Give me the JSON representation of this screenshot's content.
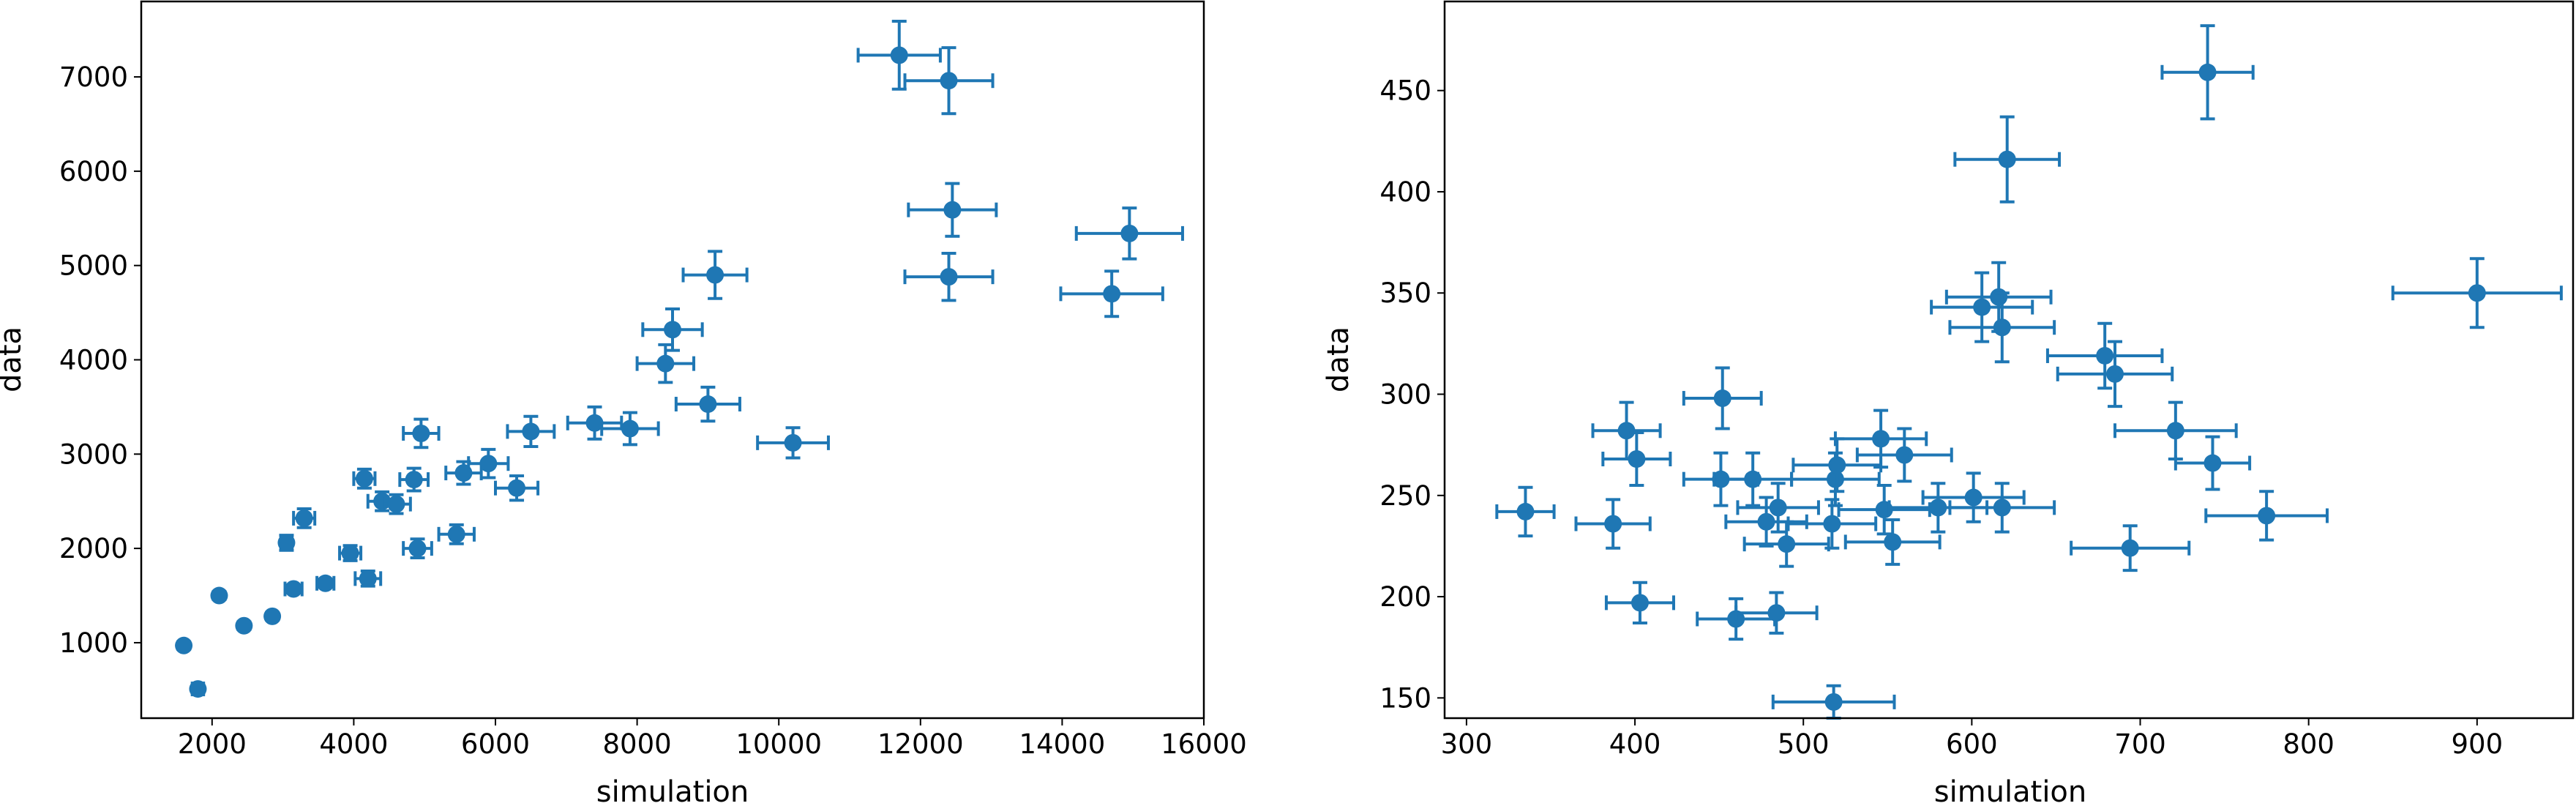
{
  "chart_data": [
    {
      "type": "scatter",
      "xlabel": "simulation",
      "ylabel": "data",
      "xlim": [
        1000,
        16000
      ],
      "ylim": [
        200,
        7800
      ],
      "xticks": [
        2000,
        4000,
        6000,
        8000,
        10000,
        12000,
        14000,
        16000
      ],
      "yticks": [
        1000,
        2000,
        3000,
        4000,
        5000,
        6000,
        7000
      ],
      "grid": false,
      "color": "#1f77b4",
      "points": [
        {
          "x": 1600,
          "y": 970,
          "xerr": 40,
          "yerr": 40
        },
        {
          "x": 1800,
          "y": 510,
          "xerr": 80,
          "yerr": 40
        },
        {
          "x": 2100,
          "y": 1500,
          "xerr": 40,
          "yerr": 40
        },
        {
          "x": 2450,
          "y": 1180,
          "xerr": 40,
          "yerr": 40
        },
        {
          "x": 2850,
          "y": 1280,
          "xerr": 40,
          "yerr": 40
        },
        {
          "x": 3050,
          "y": 2060,
          "xerr": 80,
          "yerr": 80
        },
        {
          "x": 3150,
          "y": 1570,
          "xerr": 120,
          "yerr": 40
        },
        {
          "x": 3300,
          "y": 2320,
          "xerr": 150,
          "yerr": 100
        },
        {
          "x": 3600,
          "y": 1630,
          "xerr": 120,
          "yerr": 40
        },
        {
          "x": 3950,
          "y": 1950,
          "xerr": 150,
          "yerr": 80
        },
        {
          "x": 4150,
          "y": 2740,
          "xerr": 150,
          "yerr": 100
        },
        {
          "x": 4200,
          "y": 1680,
          "xerr": 180,
          "yerr": 80
        },
        {
          "x": 4400,
          "y": 2500,
          "xerr": 200,
          "yerr": 100
        },
        {
          "x": 4600,
          "y": 2470,
          "xerr": 200,
          "yerr": 100
        },
        {
          "x": 4850,
          "y": 2730,
          "xerr": 200,
          "yerr": 120
        },
        {
          "x": 4900,
          "y": 2000,
          "xerr": 200,
          "yerr": 100
        },
        {
          "x": 4950,
          "y": 3220,
          "xerr": 250,
          "yerr": 150
        },
        {
          "x": 5450,
          "y": 2150,
          "xerr": 250,
          "yerr": 100
        },
        {
          "x": 5550,
          "y": 2800,
          "xerr": 250,
          "yerr": 120
        },
        {
          "x": 5900,
          "y": 2900,
          "xerr": 280,
          "yerr": 150
        },
        {
          "x": 6300,
          "y": 2640,
          "xerr": 300,
          "yerr": 130
        },
        {
          "x": 6500,
          "y": 3240,
          "xerr": 330,
          "yerr": 160
        },
        {
          "x": 7400,
          "y": 3330,
          "xerr": 380,
          "yerr": 170
        },
        {
          "x": 7900,
          "y": 3270,
          "xerr": 400,
          "yerr": 170
        },
        {
          "x": 8400,
          "y": 3960,
          "xerr": 400,
          "yerr": 200
        },
        {
          "x": 8500,
          "y": 4320,
          "xerr": 420,
          "yerr": 220
        },
        {
          "x": 9000,
          "y": 3530,
          "xerr": 450,
          "yerr": 180
        },
        {
          "x": 9100,
          "y": 4900,
          "xerr": 450,
          "yerr": 250
        },
        {
          "x": 10200,
          "y": 3120,
          "xerr": 500,
          "yerr": 160
        },
        {
          "x": 11700,
          "y": 7230,
          "xerr": 580,
          "yerr": 360
        },
        {
          "x": 12400,
          "y": 6960,
          "xerr": 620,
          "yerr": 350
        },
        {
          "x": 12400,
          "y": 4880,
          "xerr": 620,
          "yerr": 250
        },
        {
          "x": 12450,
          "y": 5590,
          "xerr": 620,
          "yerr": 280
        },
        {
          "x": 14700,
          "y": 4700,
          "xerr": 720,
          "yerr": 240
        },
        {
          "x": 14950,
          "y": 5340,
          "xerr": 750,
          "yerr": 270
        }
      ]
    },
    {
      "type": "scatter",
      "xlabel": "simulation",
      "ylabel": "data",
      "xlim": [
        287,
        957
      ],
      "ylim": [
        140,
        494
      ],
      "xticks": [
        300,
        400,
        500,
        600,
        700,
        800,
        900
      ],
      "yticks": [
        150,
        200,
        250,
        300,
        350,
        400,
        450
      ],
      "grid": false,
      "color": "#1f77b4",
      "points": [
        {
          "x": 335,
          "y": 242,
          "xerr": 17,
          "yerr": 12
        },
        {
          "x": 387,
          "y": 236,
          "xerr": 22,
          "yerr": 12
        },
        {
          "x": 395,
          "y": 282,
          "xerr": 20,
          "yerr": 14
        },
        {
          "x": 401,
          "y": 268,
          "xerr": 20,
          "yerr": 13
        },
        {
          "x": 403,
          "y": 197,
          "xerr": 20,
          "yerr": 10
        },
        {
          "x": 452,
          "y": 298,
          "xerr": 23,
          "yerr": 15
        },
        {
          "x": 451,
          "y": 258,
          "xerr": 22,
          "yerr": 13
        },
        {
          "x": 460,
          "y": 189,
          "xerr": 23,
          "yerr": 10
        },
        {
          "x": 470,
          "y": 258,
          "xerr": 23,
          "yerr": 13
        },
        {
          "x": 478,
          "y": 237,
          "xerr": 24,
          "yerr": 12
        },
        {
          "x": 485,
          "y": 244,
          "xerr": 24,
          "yerr": 12
        },
        {
          "x": 484,
          "y": 192,
          "xerr": 24,
          "yerr": 10
        },
        {
          "x": 490,
          "y": 226,
          "xerr": 25,
          "yerr": 11
        },
        {
          "x": 517,
          "y": 236,
          "xerr": 26,
          "yerr": 12
        },
        {
          "x": 518,
          "y": 148,
          "xerr": 36,
          "yerr": 8
        },
        {
          "x": 519,
          "y": 258,
          "xerr": 26,
          "yerr": 13
        },
        {
          "x": 520,
          "y": 265,
          "xerr": 26,
          "yerr": 13
        },
        {
          "x": 546,
          "y": 278,
          "xerr": 27,
          "yerr": 14
        },
        {
          "x": 548,
          "y": 243,
          "xerr": 27,
          "yerr": 12
        },
        {
          "x": 553,
          "y": 227,
          "xerr": 28,
          "yerr": 11
        },
        {
          "x": 560,
          "y": 270,
          "xerr": 28,
          "yerr": 13
        },
        {
          "x": 580,
          "y": 244,
          "xerr": 29,
          "yerr": 12
        },
        {
          "x": 601,
          "y": 249,
          "xerr": 30,
          "yerr": 12
        },
        {
          "x": 606,
          "y": 343,
          "xerr": 30,
          "yerr": 17
        },
        {
          "x": 616,
          "y": 348,
          "xerr": 31,
          "yerr": 17
        },
        {
          "x": 618,
          "y": 333,
          "xerr": 31,
          "yerr": 17
        },
        {
          "x": 618,
          "y": 244,
          "xerr": 31,
          "yerr": 12
        },
        {
          "x": 621,
          "y": 416,
          "xerr": 31,
          "yerr": 21
        },
        {
          "x": 679,
          "y": 319,
          "xerr": 34,
          "yerr": 16
        },
        {
          "x": 685,
          "y": 310,
          "xerr": 34,
          "yerr": 16
        },
        {
          "x": 694,
          "y": 224,
          "xerr": 35,
          "yerr": 11
        },
        {
          "x": 721,
          "y": 282,
          "xerr": 36,
          "yerr": 14
        },
        {
          "x": 740,
          "y": 459,
          "xerr": 27,
          "yerr": 23
        },
        {
          "x": 743,
          "y": 266,
          "xerr": 22,
          "yerr": 13
        },
        {
          "x": 775,
          "y": 240,
          "xerr": 36,
          "yerr": 12
        },
        {
          "x": 900,
          "y": 350,
          "xerr": 50,
          "yerr": 17
        }
      ]
    }
  ]
}
